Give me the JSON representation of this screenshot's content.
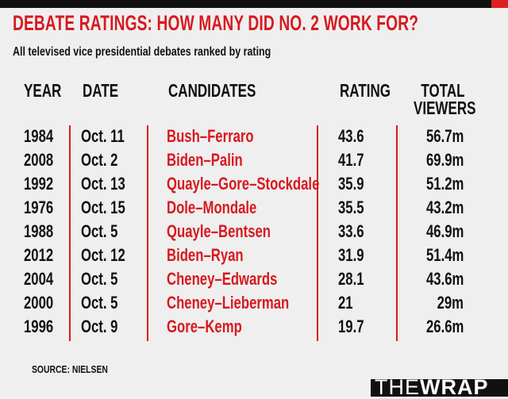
{
  "header": {
    "title": "DEBATE RATINGS: HOW MANY DID NO. 2 WORK FOR?",
    "subtitle": "All televised vice presidential debates ranked by rating"
  },
  "columns": {
    "year": "YEAR",
    "date": "DATE",
    "candidates": "CANDIDATES",
    "rating": "RATING",
    "viewers_line1": "TOTAL",
    "viewers_line2": "VIEWERS"
  },
  "chart_data": {
    "type": "table",
    "rows": [
      {
        "year": "1984",
        "date": "Oct. 11",
        "candidates": "Bush–Ferraro",
        "rating": "43.6",
        "viewers": "56.7m"
      },
      {
        "year": "2008",
        "date": "Oct. 2",
        "candidates": "Biden–Palin",
        "rating": "41.7",
        "viewers": "69.9m"
      },
      {
        "year": "1992",
        "date": "Oct. 13",
        "candidates": "Quayle–Gore–Stockdale",
        "rating": "35.9",
        "viewers": "51.2m"
      },
      {
        "year": "1976",
        "date": "Oct. 15",
        "candidates": "Dole–Mondale",
        "rating": "35.5",
        "viewers": "43.2m"
      },
      {
        "year": "1988",
        "date": "Oct. 5",
        "candidates": "Quayle–Bentsen",
        "rating": "33.6",
        "viewers": "46.9m"
      },
      {
        "year": "2012",
        "date": "Oct. 12",
        "candidates": "Biden–Ryan",
        "rating": "31.9",
        "viewers": "51.4m"
      },
      {
        "year": "2004",
        "date": "Oct. 5",
        "candidates": "Cheney–Edwards",
        "rating": "28.1",
        "viewers": "43.6m"
      },
      {
        "year": "2000",
        "date": "Oct. 5",
        "candidates": "Cheney–Lieberman",
        "rating": "21",
        "viewers": "29m"
      },
      {
        "year": "1996",
        "date": "Oct. 9",
        "candidates": "Gore–Kemp",
        "rating": "19.7",
        "viewers": "26.6m"
      }
    ]
  },
  "footer": {
    "source": "SOURCE: NIELSEN",
    "logo_the": "THE",
    "logo_wrap": "WRAP"
  },
  "colors": {
    "accent": "#d8191f",
    "text": "#111111",
    "background": "#efefef"
  }
}
